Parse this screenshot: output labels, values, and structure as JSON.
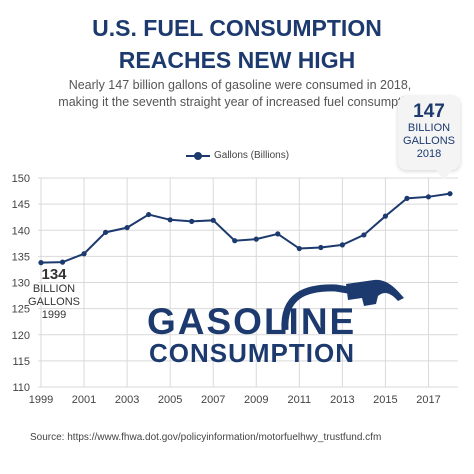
{
  "title_line1": "U.S. FUEL CONSUMPTION",
  "title_line2": "REACHES NEW HIGH",
  "subtitle_line1": "Nearly 147 billion gallons of gasoline were consumed in 2018,",
  "subtitle_line2": "making it the seventh straight year of increased fuel consumption.",
  "callout_high": {
    "value": "147",
    "unit_line1": "BILLION",
    "unit_line2": "GALLONS",
    "year": "2018"
  },
  "callout_low": {
    "value": "134",
    "unit_line1": "BILLION",
    "unit_line2": "GALLONS",
    "year": "1999"
  },
  "logo": {
    "line1": "GASOLINE",
    "line2": "CONSUMPTION",
    "icon": "fuel-nozzle-icon"
  },
  "source": "Source: https://www.fhwa.dot.gov/policyinformation/motorfuelhwy_trustfund.cfm",
  "colors": {
    "primary": "#1d3a6e",
    "grid": "#d9d9d9"
  },
  "chart_data": {
    "type": "line",
    "title": "",
    "xlabel": "",
    "ylabel": "",
    "legend": "top-center",
    "grid": true,
    "ylim": [
      110,
      150
    ],
    "y_ticks": [
      110,
      115,
      120,
      125,
      130,
      135,
      140,
      145,
      150
    ],
    "x_ticks": [
      1999,
      2001,
      2003,
      2005,
      2007,
      2009,
      2011,
      2013,
      2015,
      2017
    ],
    "series": [
      {
        "name": "Gallons (Billions)",
        "x": [
          1999,
          2000,
          2001,
          2002,
          2003,
          2004,
          2005,
          2006,
          2007,
          2008,
          2009,
          2010,
          2011,
          2012,
          2013,
          2014,
          2015,
          2016,
          2017,
          2018
        ],
        "values": [
          133.8,
          133.9,
          135.5,
          139.6,
          140.5,
          143.0,
          142.0,
          141.7,
          141.9,
          138.0,
          138.3,
          139.3,
          136.5,
          136.7,
          137.2,
          139.1,
          142.7,
          146.1,
          146.4,
          147.0
        ]
      }
    ]
  }
}
